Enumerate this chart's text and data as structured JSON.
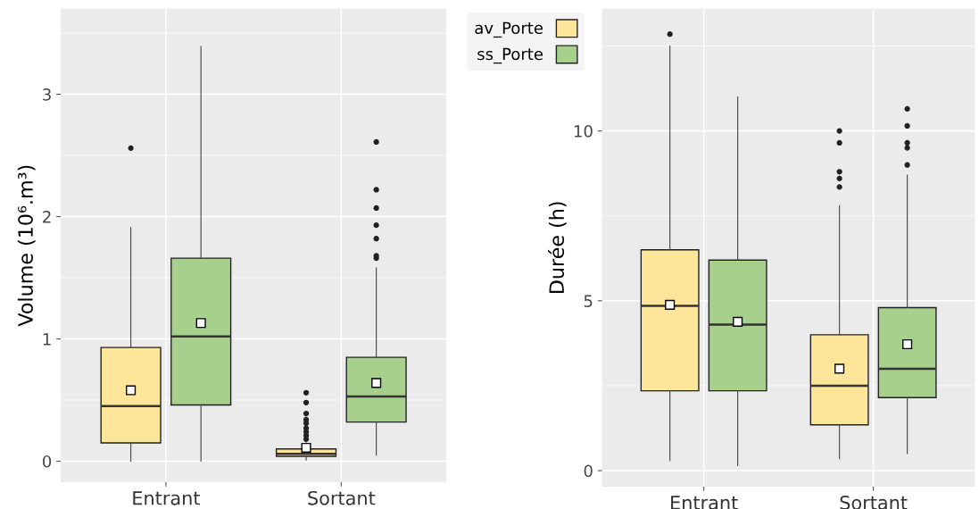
{
  "chart_data": [
    {
      "type": "box",
      "ylabel": "Volume (10⁶.m³)",
      "categories": [
        "Entrant",
        "Sortant"
      ],
      "ylim": [
        -0.17,
        3.7
      ],
      "yticks": [
        0,
        1,
        2,
        3,
        {
          "value": 0.5,
          "label": null
        },
        {
          "value": 1.5,
          "label": null
        },
        {
          "value": 2.5,
          "label": null
        },
        {
          "value": 3.5,
          "label": null
        }
      ],
      "grid": true,
      "legend": "top right",
      "series": [
        {
          "name": "av_Porte",
          "color": "#fde59a",
          "boxes": [
            {
              "low": 0,
              "q1": 0.15,
              "median": 0.45,
              "q3": 0.93,
              "high": 1.91,
              "mean": 0.58,
              "outliers": [
                2.56
              ]
            },
            {
              "low": 0.01,
              "q1": 0.04,
              "median": 0.06,
              "q3": 0.1,
              "high": 0.15,
              "mean": 0.11,
              "outliers": [
                0.18,
                0.21,
                0.24,
                0.27,
                0.31,
                0.34,
                0.39,
                0.48,
                0.56
              ]
            }
          ]
        },
        {
          "name": "ss_Porte",
          "color": "#a8d08d",
          "boxes": [
            {
              "low": 0,
              "q1": 0.46,
              "median": 1.02,
              "q3": 1.66,
              "high": 3.39,
              "mean": 1.13
            },
            {
              "low": 0.05,
              "q1": 0.32,
              "median": 0.53,
              "q3": 0.85,
              "high": 1.58,
              "mean": 0.64,
              "outliers": [
                1.66,
                1.68,
                1.82,
                1.93,
                2.07,
                2.22,
                2.61
              ]
            }
          ]
        }
      ]
    },
    {
      "type": "box",
      "ylabel": "Durée (h)",
      "categories": [
        "Entrant",
        "Sortant"
      ],
      "ylim": [
        -0.47,
        13.6
      ],
      "yticks": [
        0,
        5,
        10,
        {
          "value": 2.5,
          "label": null
        },
        {
          "value": 7.5,
          "label": null
        },
        {
          "value": 12.5,
          "label": null
        }
      ],
      "grid": true,
      "series": [
        {
          "color": "#fde59a",
          "boxes": [
            {
              "low": 0.3,
              "q1": 2.35,
              "median": 4.85,
              "q3": 6.5,
              "high": 12.5,
              "mean": 4.88,
              "outliers": [
                12.85
              ]
            },
            {
              "low": 0.35,
              "q1": 1.35,
              "median": 2.5,
              "q3": 4.0,
              "high": 7.8,
              "mean": 3.0,
              "outliers": [
                8.35,
                8.6,
                8.8,
                9.65,
                10.0
              ]
            }
          ]
        },
        {
          "color": "#a8d08d",
          "boxes": [
            {
              "low": 0.15,
              "q1": 2.35,
              "median": 4.3,
              "q3": 6.2,
              "high": 11.0,
              "mean": 4.38
            },
            {
              "low": 0.5,
              "q1": 2.15,
              "median": 3.0,
              "q3": 4.8,
              "high": 8.7,
              "mean": 3.72,
              "outliers": [
                9.0,
                9.5,
                9.65,
                10.15,
                10.65
              ]
            }
          ]
        }
      ]
    }
  ]
}
